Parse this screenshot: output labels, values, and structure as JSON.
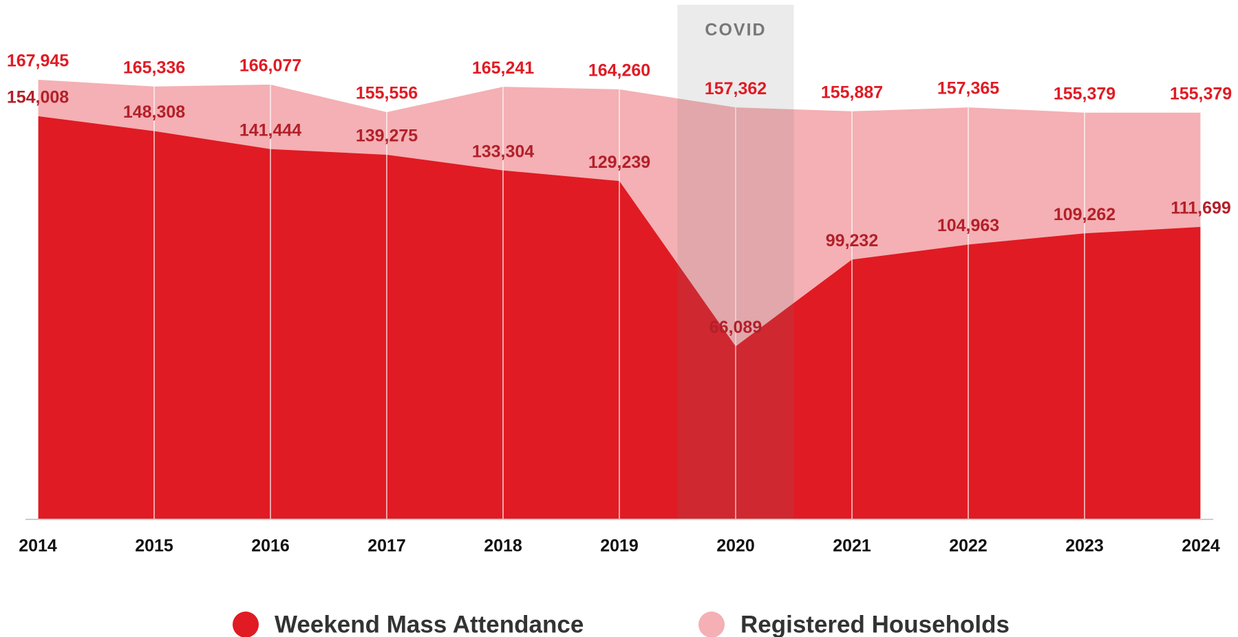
{
  "chart_data": {
    "type": "area",
    "categories": [
      "2014",
      "2015",
      "2016",
      "2017",
      "2018",
      "2019",
      "2020",
      "2021",
      "2022",
      "2023",
      "2024"
    ],
    "series": [
      {
        "name": "Registered Households",
        "color": "#f4b0b4",
        "label_color": "#e01b24",
        "values": [
          167945,
          165336,
          166077,
          155556,
          165241,
          164260,
          157362,
          155887,
          157365,
          155379,
          155379
        ],
        "value_labels": [
          "167,945",
          "165,336",
          "166,077",
          "155,556",
          "165,241",
          "164,260",
          "157,362",
          "155,887",
          "157,365",
          "155,379",
          "155,379"
        ]
      },
      {
        "name": "Weekend Mass Attendance",
        "color": "#e01b24",
        "label_color": "#b3202a",
        "values": [
          154008,
          148308,
          141444,
          139275,
          133304,
          129239,
          66089,
          99232,
          104963,
          109262,
          111699
        ],
        "value_labels": [
          "154,008",
          "148,308",
          "141,444",
          "139,275",
          "133,304",
          "129,239",
          "66,089",
          "99,232",
          "104,963",
          "109,262",
          "111,699"
        ]
      }
    ],
    "ylim": [
      0,
      180000
    ],
    "annotations": [
      {
        "text": "COVID",
        "category": "2020"
      }
    ],
    "legend": "bottom"
  }
}
